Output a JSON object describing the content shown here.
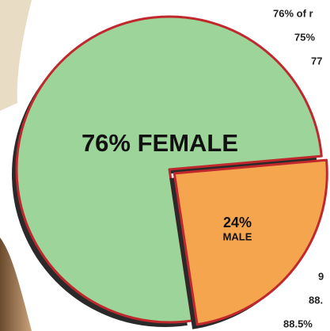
{
  "chart_data": {
    "type": "pie",
    "categories": [
      "FEMALE",
      "MALE"
    ],
    "values": [
      76,
      24
    ],
    "value_labels": [
      "76%",
      "24%"
    ],
    "colors": [
      "#9dd49a",
      "#f6a54f"
    ],
    "side_texts": [
      "76% of r",
      "75%",
      "77",
      "9",
      "88.",
      "88.5%"
    ]
  }
}
